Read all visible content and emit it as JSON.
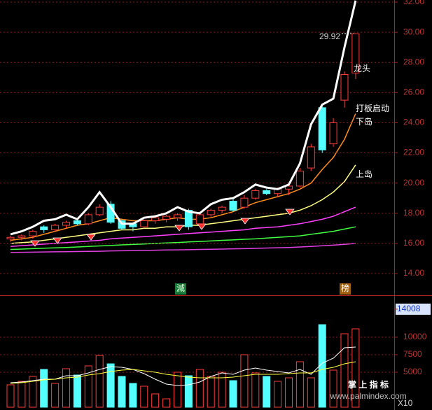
{
  "chart_data": [
    {
      "type": "candlestick",
      "open": [
        16.3,
        16.4,
        16.5,
        17.1,
        16.9,
        17.2,
        17.5,
        17.3,
        17.9,
        18.6,
        17.5,
        17.3,
        17.1,
        17.5,
        17.6,
        17.7,
        18.2,
        17.3,
        17.9,
        18.2,
        18.8,
        18.4,
        19.0,
        19.5,
        19.3,
        19.6,
        19.8,
        21.0,
        25.0,
        22.6,
        25.5,
        27.3
      ],
      "high": [
        16.5,
        16.6,
        16.9,
        17.2,
        17.3,
        17.5,
        17.6,
        18.0,
        18.6,
        18.8,
        17.6,
        17.4,
        17.6,
        17.8,
        17.9,
        18.0,
        18.3,
        18.0,
        18.3,
        18.5,
        19.0,
        19.2,
        19.6,
        19.6,
        19.7,
        20.0,
        21.0,
        22.6,
        25.1,
        24.3,
        27.4,
        29.92
      ],
      "low": [
        16.1,
        16.2,
        16.3,
        16.7,
        16.8,
        17.0,
        17.2,
        17.2,
        17.8,
        17.3,
        16.9,
        16.8,
        17.0,
        17.3,
        17.4,
        17.5,
        16.9,
        17.1,
        17.7,
        18.0,
        18.1,
        18.3,
        18.9,
        19.2,
        19.1,
        19.2,
        19.7,
        20.8,
        22.0,
        22.4,
        25.0,
        26.9
      ],
      "close": [
        16.4,
        16.5,
        16.8,
        16.9,
        17.2,
        17.4,
        17.3,
        17.9,
        18.4,
        17.4,
        17.0,
        17.1,
        17.5,
        17.7,
        17.8,
        17.9,
        17.1,
        17.9,
        18.2,
        18.4,
        18.2,
        19.0,
        19.5,
        19.3,
        19.6,
        19.8,
        20.8,
        22.4,
        22.2,
        24.0,
        27.2,
        29.9
      ],
      "up_color": "#ff3c3c",
      "down_color": "#54ffff",
      "overlays": [
        {
          "color": "#ffffff",
          "values": [
            16.6,
            16.8,
            17.1,
            17.5,
            17.6,
            17.9,
            17.6,
            18.4,
            19.4,
            18.4,
            17.3,
            17.3,
            17.7,
            17.8,
            18.0,
            18.4,
            18.1,
            18.0,
            18.6,
            18.9,
            19.0,
            19.4,
            19.9,
            19.7,
            19.6,
            19.9,
            21.3,
            23.9,
            25.2,
            25.6,
            29.0,
            32.1
          ]
        },
        {
          "color": "#ff8c1a",
          "values": [
            16.2,
            16.3,
            16.4,
            16.6,
            16.8,
            17.0,
            17.2,
            17.3,
            17.5,
            17.7,
            17.6,
            17.5,
            17.5,
            17.5,
            17.6,
            17.7,
            17.6,
            17.6,
            17.7,
            17.9,
            18.1,
            18.4,
            18.7,
            18.9,
            19.1,
            19.3,
            19.6,
            20.0,
            20.9,
            21.7,
            22.9,
            24.6
          ]
        },
        {
          "color": "#ffff80",
          "values": [
            16.0,
            16.05,
            16.1,
            16.2,
            16.3,
            16.4,
            16.5,
            16.6,
            16.7,
            16.8,
            16.9,
            16.9,
            17.0,
            17.0,
            17.1,
            17.1,
            17.2,
            17.2,
            17.3,
            17.4,
            17.5,
            17.6,
            17.7,
            17.8,
            17.9,
            18.0,
            18.2,
            18.5,
            18.9,
            19.4,
            20.1,
            21.2
          ]
        },
        {
          "color": "#ff40ff",
          "values": [
            15.8,
            15.85,
            15.9,
            15.95,
            16.0,
            16.05,
            16.1,
            16.15,
            16.2,
            16.3,
            16.35,
            16.4,
            16.45,
            16.5,
            16.55,
            16.6,
            16.65,
            16.7,
            16.75,
            16.8,
            16.85,
            16.9,
            17.0,
            17.05,
            17.1,
            17.2,
            17.3,
            17.45,
            17.6,
            17.8,
            18.1,
            18.4
          ]
        },
        {
          "color": "#40ff40",
          "values": [
            15.6,
            15.62,
            15.65,
            15.68,
            15.7,
            15.73,
            15.76,
            15.8,
            15.83,
            15.86,
            15.9,
            15.93,
            15.96,
            16.0,
            16.03,
            16.06,
            16.1,
            16.13,
            16.16,
            16.2,
            16.23,
            16.27,
            16.3,
            16.35,
            16.4,
            16.45,
            16.5,
            16.6,
            16.7,
            16.8,
            16.95,
            17.1
          ]
        },
        {
          "color": "#e040e0",
          "values": [
            15.4,
            15.41,
            15.42,
            15.43,
            15.44,
            15.45,
            15.46,
            15.47,
            15.48,
            15.5,
            15.51,
            15.52,
            15.53,
            15.55,
            15.56,
            15.57,
            15.58,
            15.6,
            15.61,
            15.62,
            15.64,
            15.65,
            15.67,
            15.69,
            15.71,
            15.73,
            15.76,
            15.8,
            15.84,
            15.88,
            15.94,
            16.0
          ]
        }
      ],
      "ylim": [
        12.56,
        32.14
      ],
      "yticks": [
        {
          "value": 14,
          "label": "14.00"
        },
        {
          "value": 16,
          "label": "16.00"
        },
        {
          "value": 18,
          "label": "18.00"
        },
        {
          "value": 20,
          "label": "20.00"
        },
        {
          "value": 22,
          "label": "22.00"
        },
        {
          "value": 24,
          "label": "24.00"
        },
        {
          "value": 26,
          "label": "26.00"
        },
        {
          "value": 28,
          "label": "28.00"
        },
        {
          "value": 30,
          "label": "30.00"
        },
        {
          "value": 32,
          "label": "32.00"
        }
      ],
      "annotations": [
        "龙头",
        "打板启动",
        "下岛",
        "上岛"
      ],
      "markers": [
        "減",
        "榜"
      ]
    },
    {
      "type": "bar",
      "values": [
        3200,
        3700,
        4400,
        5400,
        3400,
        5500,
        4600,
        5900,
        7400,
        6200,
        4400,
        3400,
        3000,
        1900,
        1200,
        5000,
        4500,
        5400,
        4400,
        5000,
        3800,
        7500,
        4900,
        4400,
        3700,
        4200,
        6500,
        4200,
        11800,
        5300,
        10500,
        11200
      ],
      "ma": [
        {
          "color": "#ffffff",
          "values": [
            3500,
            3600,
            3800,
            4000,
            4000,
            4500,
            4500,
            4900,
            5400,
            5800,
            5700,
            5400,
            4800,
            4000,
            3300,
            3100,
            3200,
            3600,
            4400,
            4900,
            4700,
            5300,
            5600,
            5300,
            5100,
            4900,
            5400,
            4700,
            6300,
            7000,
            8500,
            8600
          ]
        },
        {
          "color": "#ffff40",
          "values": [
            3400,
            3500,
            3700,
            3900,
            4000,
            4200,
            4300,
            4600,
            4800,
            5100,
            5300,
            5400,
            5200,
            5000,
            4700,
            4500,
            4300,
            4200,
            4200,
            4200,
            4300,
            4500,
            4700,
            4700,
            4700,
            4800,
            4900,
            4900,
            5400,
            5700,
            6200,
            6500
          ]
        }
      ],
      "ylim": [
        0,
        15800
      ],
      "yticks": [
        5000,
        7500,
        10000,
        14008
      ],
      "unit_label": "X10"
    }
  ],
  "watermark": {
    "title": "掌 上 指 标",
    "url": "www.palmindex.com"
  }
}
